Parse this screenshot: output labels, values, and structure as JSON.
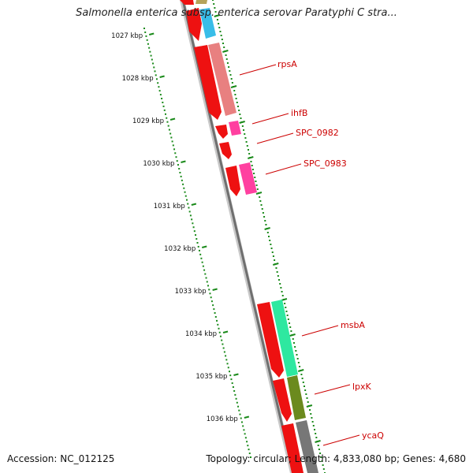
{
  "title": "Salmonella enterica subsp. enterica serovar Paratyphi C stra...",
  "footer": {
    "accession": "Accession: NC_012125",
    "summary": "Topology: circular; Length: 4,833,080 bp; Genes: 4,680"
  },
  "ruler": {
    "labels": [
      "1027 kbp",
      "1028 kbp",
      "1029 kbp",
      "1030 kbp",
      "1031 kbp",
      "1032 kbp",
      "1033 kbp",
      "1034 kbp",
      "1035 kbp",
      "1036 kbp"
    ],
    "color": "#1a8a1a"
  },
  "genes": [
    {
      "label": "rpsA",
      "color": "#e88080"
    },
    {
      "label": "ihfB",
      "color": "#ff40a0"
    },
    {
      "label": "SPC_0982",
      "color": "#ff40a0"
    },
    {
      "label": "SPC_0983",
      "color": "#ff40a0"
    },
    {
      "label": "msbA",
      "color": "#2ee8a0"
    },
    {
      "label": "lpxK",
      "color": "#6b8a1e"
    },
    {
      "label": "ycaQ",
      "color": "#777777"
    }
  ],
  "colors": {
    "cds_arrow": "#ee1111",
    "backbone": "#8a8a8a",
    "label_red": "#cc0000",
    "top_gene_1": "#b5a35a",
    "top_gene_2": "#38bde8"
  }
}
